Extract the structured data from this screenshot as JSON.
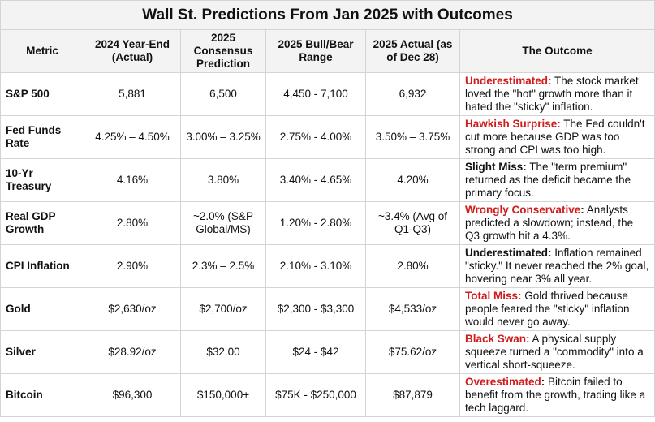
{
  "title": "Wall St. Predictions From Jan 2025 with Outcomes",
  "headers": [
    "Metric",
    "2024 Year-End (Actual)",
    "2025 Consensus Prediction",
    "2025 Bull/Bear Range",
    "2025 Actual (as of Dec 28)",
    "The Outcome"
  ],
  "rows": [
    {
      "metric": "S&P 500",
      "y2024": "5,881",
      "consensus": "6,500",
      "range": "4,450 - 7,100",
      "actual": "6,932",
      "label": "Underestimated:",
      "label_color": "red",
      "colon": "",
      "text": " The stock market loved the \"hot\" growth more than it hated the \"sticky\" inflation."
    },
    {
      "metric": "Fed Funds Rate",
      "y2024": "4.25% – 4.50%",
      "consensus": "3.00% – 3.25%",
      "range": "2.75% - 4.00%",
      "actual": "3.50% – 3.75%",
      "label": "Hawkish Surprise:",
      "label_color": "red",
      "colon": "",
      "text": " The Fed couldn't cut more because GDP was too strong and CPI was too high."
    },
    {
      "metric": "10-Yr Treasury",
      "y2024": "4.16%",
      "consensus": "3.80%",
      "range": "3.40% - 4.65%",
      "actual": "4.20%",
      "label": "Slight Miss:",
      "label_color": "black",
      "colon": "",
      "text": " The \"term premium\" returned as the deficit became the primary focus."
    },
    {
      "metric": "Real GDP Growth",
      "y2024": "2.80%",
      "consensus": "~2.0% (S&P Global/MS)",
      "range": "1.20% - 2.80%",
      "actual": "~3.4% (Avg of Q1-Q3)",
      "label": "Wrongly Conservative",
      "label_color": "red",
      "colon": ":",
      "text": " Analysts predicted a slowdown; instead, the Q3 growth hit a 4.3%."
    },
    {
      "metric": "CPI Inflation",
      "y2024": "2.90%",
      "consensus": "2.3% – 2.5%",
      "range": "2.10% - 3.10%",
      "actual": "2.80%",
      "label": "Underestimated:",
      "label_color": "black",
      "colon": "",
      "text": " Inflation remained \"sticky.\" It never reached the 2% goal, hovering near 3% all year."
    },
    {
      "metric": "Gold",
      "y2024": "$2,630/oz",
      "consensus": "$2,700/oz",
      "range": "$2,300 - $3,300",
      "actual": "$4,533/oz",
      "label": "Total Miss:",
      "label_color": "red",
      "colon": "",
      "text": " Gold thrived because people feared the \"sticky\" inflation would never go away."
    },
    {
      "metric": "Silver",
      "y2024": "$28.92/oz",
      "consensus": "$32.00",
      "range": "$24 - $42",
      "actual": "$75.62/oz",
      "label": "Black Swan:",
      "label_color": "red",
      "colon": "",
      "text": " A physical supply squeeze turned a \"commodity\" into a vertical short-squeeze."
    },
    {
      "metric": "Bitcoin",
      "y2024": "$96,300",
      "consensus": "$150,000+",
      "range": "$75K - $250,000",
      "actual": "$87,879",
      "label": "Overestimated",
      "label_color": "red",
      "colon": ":",
      "text": " Bitcoin failed to benefit from the growth, trading like a tech laggard."
    }
  ]
}
